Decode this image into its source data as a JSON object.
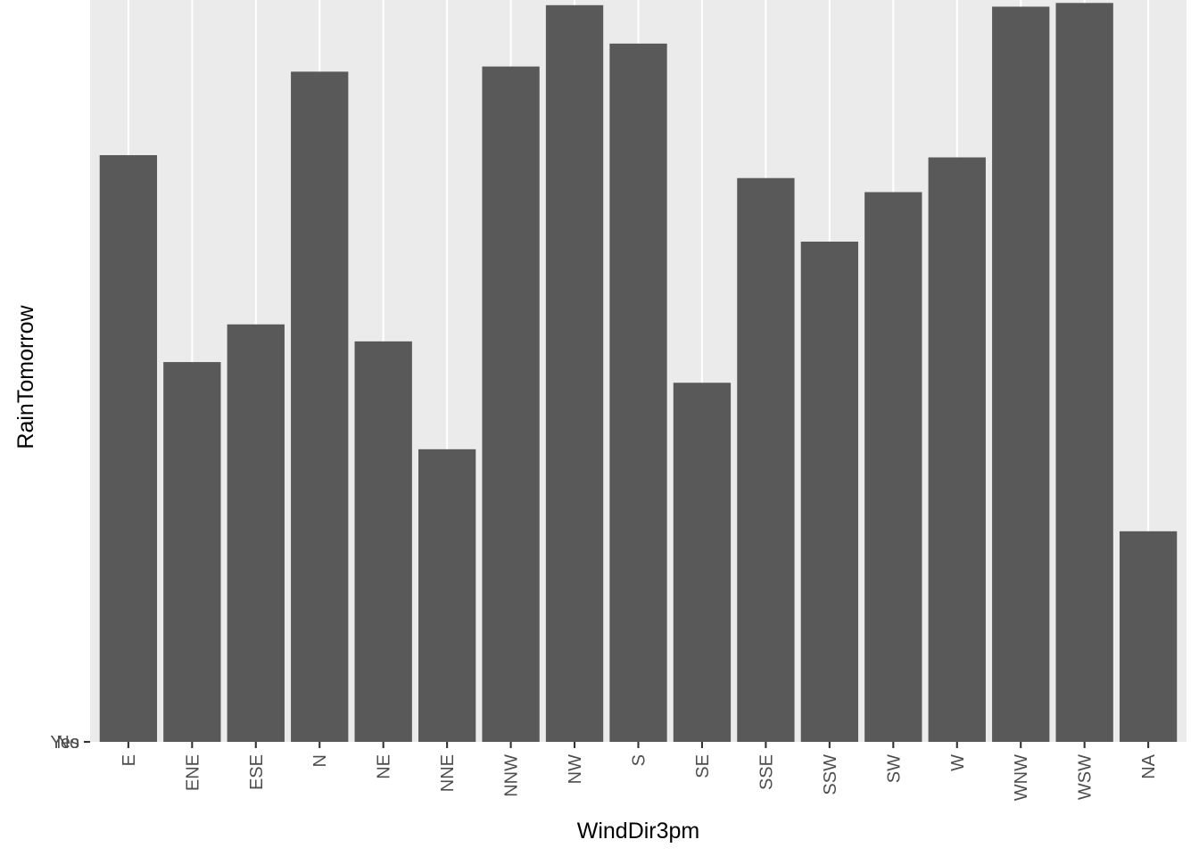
{
  "chart_data": {
    "type": "bar",
    "title": "",
    "xlabel": "WindDir3pm",
    "ylabel": "RainTomorrow",
    "categories": [
      "E",
      "ENE",
      "ESE",
      "N",
      "NE",
      "NNE",
      "NNW",
      "NW",
      "S",
      "SE",
      "SSE",
      "SSW",
      "SW",
      "W",
      "WNW",
      "WSW",
      "NA"
    ],
    "values": [
      79.4,
      51.4,
      56.5,
      90.7,
      54.2,
      39.6,
      91.4,
      99.7,
      94.5,
      48.6,
      76.3,
      67.7,
      74.4,
      79.1,
      99.5,
      100.0,
      28.5
    ],
    "ylim": [
      0,
      100.4
    ],
    "y_ticks": [
      "Yes",
      "No"
    ],
    "value_units": "relative bar height (percent of tallest bar); no numeric y scale shown",
    "grid": true,
    "colors": {
      "panel_background": "#ebebeb",
      "grid": "#ffffff",
      "bar_fill": "#595959",
      "tick_text": "#4d4d4d",
      "axis_title": "#000000"
    }
  }
}
